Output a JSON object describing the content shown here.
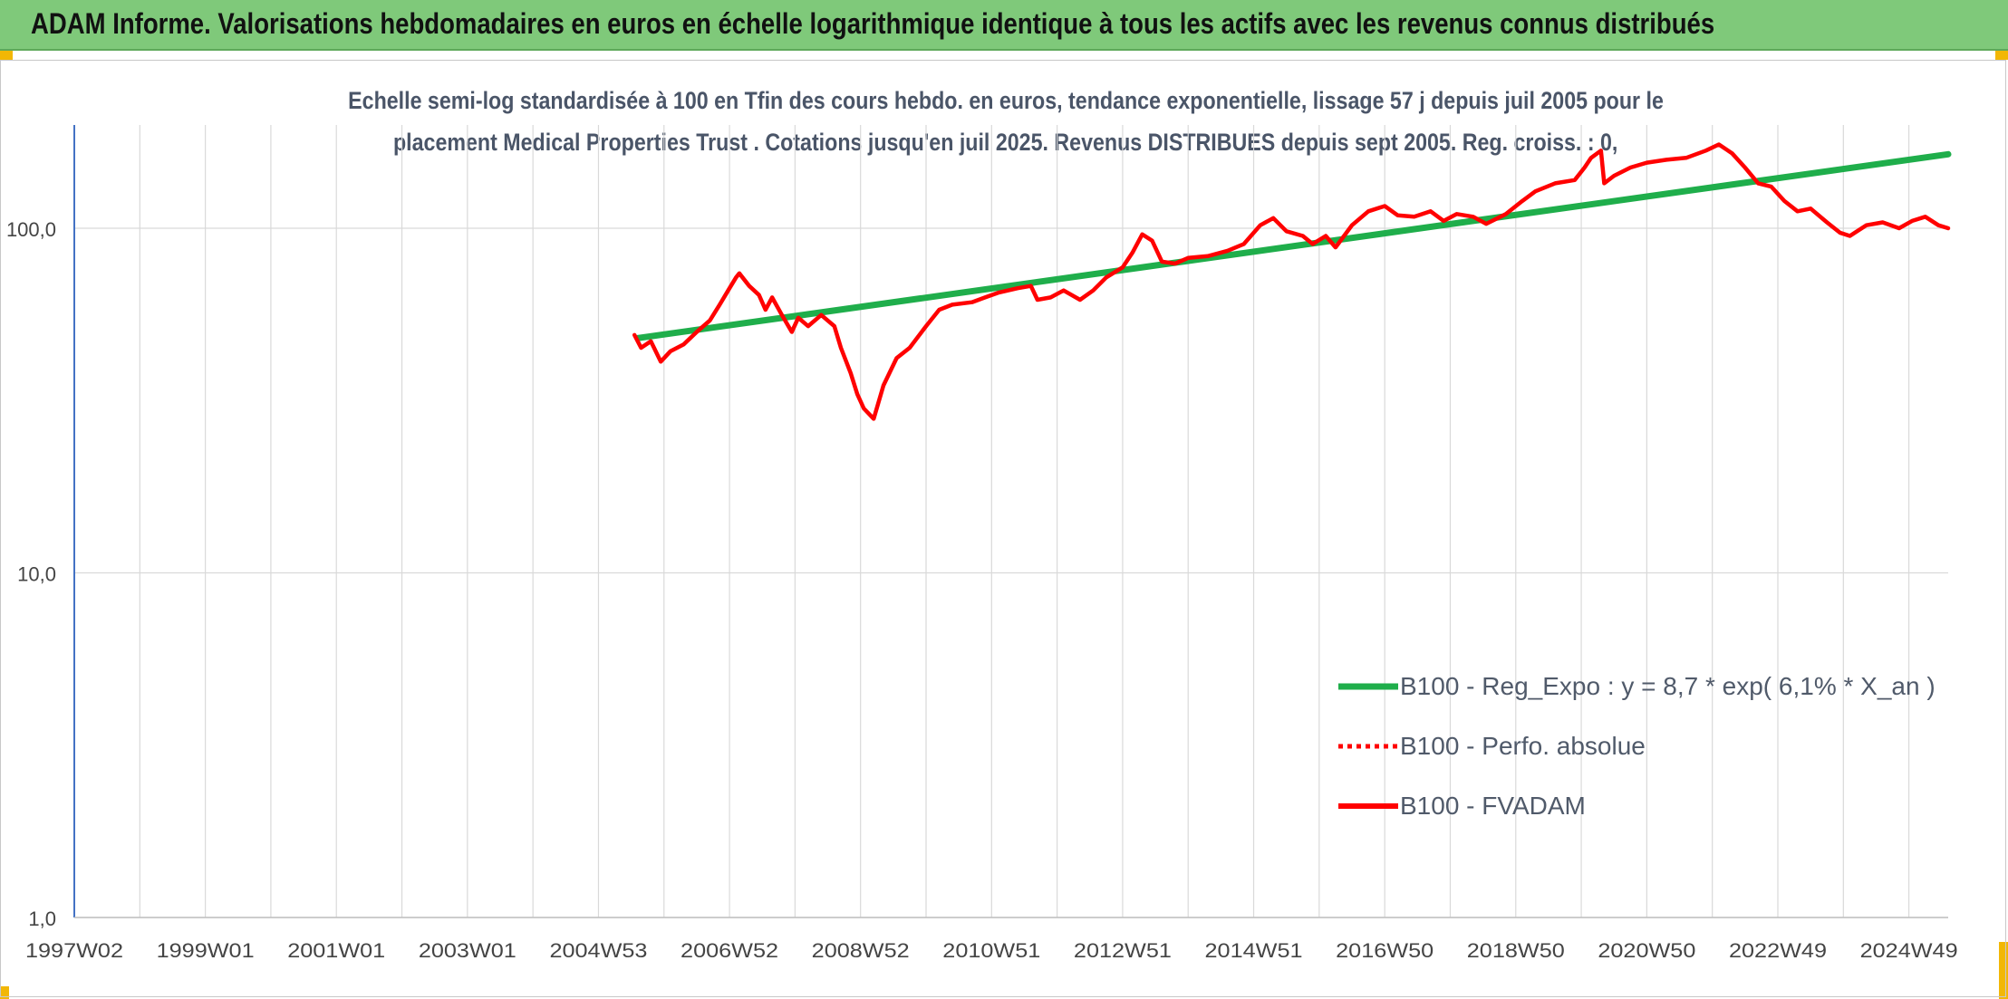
{
  "header": {
    "title": "ADAM Informe. Valorisations hebdomadaires en euros en échelle logarithmique identique à tous les actifs avec les revenus connus distribués"
  },
  "chart_data": {
    "type": "line",
    "title_lines": [
      "Echelle semi-log standardisée à 100 en Tfin des cours hebdo. en euros, tendance exponentielle, lissage 57 j depuis juil 2005 pour le",
      "placement Medical Properties Trust . Cotations jusqu'en juil 2025. Revenus DISTRIBUES depuis sept 2005. Reg. croiss. : 0,"
    ],
    "y_scale": "log",
    "ylim": [
      1,
      200
    ],
    "y_ticks": [
      1,
      10,
      100
    ],
    "y_tick_labels": [
      "1,0",
      "10,0",
      "100,0"
    ],
    "x_range": [
      1997.0,
      2025.6
    ],
    "x_ticks": [
      {
        "label": "1997W02",
        "year": 1997.0
      },
      {
        "label": "1999W01",
        "year": 1999.0
      },
      {
        "label": "2001W01",
        "year": 2001.0
      },
      {
        "label": "2003W01",
        "year": 2003.0
      },
      {
        "label": "2004W53",
        "year": 2005.0
      },
      {
        "label": "2006W52",
        "year": 2007.0
      },
      {
        "label": "2008W52",
        "year": 2009.0
      },
      {
        "label": "2010W51",
        "year": 2011.0
      },
      {
        "label": "2012W51",
        "year": 2013.0
      },
      {
        "label": "2014W51",
        "year": 2015.0
      },
      {
        "label": "2016W50",
        "year": 2017.0
      },
      {
        "label": "2018W50",
        "year": 2019.0
      },
      {
        "label": "2020W50",
        "year": 2021.0
      },
      {
        "label": "2022W49",
        "year": 2023.0
      },
      {
        "label": "2024W49",
        "year": 2025.0
      }
    ],
    "grid": true,
    "legend_position": "bottom-right",
    "colors": {
      "trend": "#1fae4b",
      "series": "#ff0000",
      "grid": "#d9d9d9",
      "axis": "#4472c4",
      "text": "#444444"
    },
    "series": [
      {
        "name": "B100 - Reg_Expo : y = 8,7 * exp( 6,1% *  X_an )",
        "style": "solid-thick",
        "color": "#1fae4b",
        "points": [
          [
            2005.6,
            48
          ],
          [
            2025.6,
            164
          ]
        ]
      },
      {
        "name": "B100 - Perfo. absolue",
        "style": "dotted",
        "color": "#ff0000",
        "points": []
      },
      {
        "name": "B100 - FVADAM",
        "style": "solid",
        "color": "#ff0000",
        "points": [
          [
            2005.55,
            49
          ],
          [
            2005.65,
            45
          ],
          [
            2005.8,
            47
          ],
          [
            2005.95,
            41
          ],
          [
            2006.1,
            44
          ],
          [
            2006.3,
            46
          ],
          [
            2006.5,
            50
          ],
          [
            2006.7,
            54
          ],
          [
            2006.85,
            60
          ],
          [
            2007.0,
            67
          ],
          [
            2007.1,
            72
          ],
          [
            2007.15,
            74
          ],
          [
            2007.3,
            68
          ],
          [
            2007.45,
            64
          ],
          [
            2007.55,
            58
          ],
          [
            2007.65,
            63
          ],
          [
            2007.8,
            56
          ],
          [
            2007.95,
            50
          ],
          [
            2008.05,
            55
          ],
          [
            2008.2,
            52
          ],
          [
            2008.4,
            56
          ],
          [
            2008.6,
            52
          ],
          [
            2008.7,
            45
          ],
          [
            2008.85,
            38
          ],
          [
            2008.95,
            33
          ],
          [
            2009.05,
            30
          ],
          [
            2009.2,
            28
          ],
          [
            2009.35,
            35
          ],
          [
            2009.55,
            42
          ],
          [
            2009.75,
            45
          ],
          [
            2010.0,
            52
          ],
          [
            2010.2,
            58
          ],
          [
            2010.4,
            60
          ],
          [
            2010.7,
            61
          ],
          [
            2010.9,
            63
          ],
          [
            2011.1,
            65
          ],
          [
            2011.4,
            67
          ],
          [
            2011.6,
            68
          ],
          [
            2011.7,
            62
          ],
          [
            2011.9,
            63
          ],
          [
            2012.1,
            66
          ],
          [
            2012.35,
            62
          ],
          [
            2012.55,
            66
          ],
          [
            2012.75,
            72
          ],
          [
            2013.0,
            77
          ],
          [
            2013.15,
            85
          ],
          [
            2013.3,
            96
          ],
          [
            2013.45,
            92
          ],
          [
            2013.6,
            80
          ],
          [
            2013.8,
            79
          ],
          [
            2014.0,
            82
          ],
          [
            2014.3,
            83
          ],
          [
            2014.6,
            86
          ],
          [
            2014.85,
            90
          ],
          [
            2015.1,
            102
          ],
          [
            2015.3,
            107
          ],
          [
            2015.5,
            98
          ],
          [
            2015.75,
            95
          ],
          [
            2015.9,
            90
          ],
          [
            2016.1,
            95
          ],
          [
            2016.25,
            88
          ],
          [
            2016.5,
            102
          ],
          [
            2016.75,
            112
          ],
          [
            2017.0,
            116
          ],
          [
            2017.2,
            109
          ],
          [
            2017.45,
            108
          ],
          [
            2017.7,
            112
          ],
          [
            2017.9,
            105
          ],
          [
            2018.1,
            110
          ],
          [
            2018.35,
            108
          ],
          [
            2018.55,
            103
          ],
          [
            2018.85,
            110
          ],
          [
            2019.1,
            120
          ],
          [
            2019.3,
            128
          ],
          [
            2019.6,
            135
          ],
          [
            2019.9,
            138
          ],
          [
            2020.05,
            150
          ],
          [
            2020.15,
            160
          ],
          [
            2020.3,
            168
          ],
          [
            2020.35,
            135
          ],
          [
            2020.5,
            142
          ],
          [
            2020.75,
            150
          ],
          [
            2021.0,
            155
          ],
          [
            2021.3,
            158
          ],
          [
            2021.6,
            160
          ],
          [
            2021.9,
            168
          ],
          [
            2022.1,
            175
          ],
          [
            2022.3,
            165
          ],
          [
            2022.5,
            150
          ],
          [
            2022.7,
            135
          ],
          [
            2022.9,
            132
          ],
          [
            2023.1,
            120
          ],
          [
            2023.3,
            112
          ],
          [
            2023.5,
            114
          ],
          [
            2023.75,
            104
          ],
          [
            2023.95,
            97
          ],
          [
            2024.1,
            95
          ],
          [
            2024.35,
            102
          ],
          [
            2024.6,
            104
          ],
          [
            2024.85,
            100
          ],
          [
            2025.05,
            105
          ],
          [
            2025.25,
            108
          ],
          [
            2025.45,
            102
          ],
          [
            2025.6,
            100
          ]
        ]
      }
    ]
  }
}
